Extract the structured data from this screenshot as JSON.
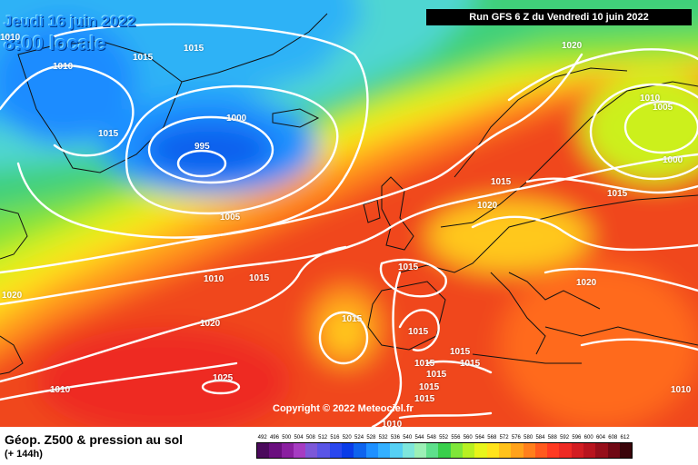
{
  "header": {
    "date": "Jeudi 16 juin 2022",
    "time": "8:00 locale",
    "run": "Run GFS 6 Z du Vendredi 10 juin 2022"
  },
  "footer": {
    "title": "Géop. Z500 & pression au sol",
    "lead": "(+ 144h)",
    "copyright": "Copyright © 2022 Meteociel.fr"
  },
  "isobar_labels": [
    "1010",
    "1015",
    "1010",
    "1015",
    "1000",
    "995",
    "1005",
    "1020",
    "1010",
    "1005",
    "1000",
    "1015",
    "1015",
    "1020",
    "1015",
    "1020",
    "1010",
    "1015",
    "1015",
    "1020",
    "1015",
    "1015",
    "1015",
    "1015",
    "1015",
    "1015",
    "1025",
    "1015",
    "1015",
    "1010",
    "1010",
    "1020",
    "1010"
  ],
  "legend": {
    "ticks": [
      "492",
      "496",
      "500",
      "504",
      "508",
      "512",
      "516",
      "520",
      "524",
      "528",
      "532",
      "536",
      "540",
      "544",
      "548",
      "552",
      "556",
      "560",
      "564",
      "568",
      "572",
      "576",
      "580",
      "584",
      "588",
      "592",
      "596",
      "600",
      "604",
      "608",
      "612"
    ],
    "colors": [
      "#4b0a5c",
      "#6a0f7e",
      "#8a1fa0",
      "#a63cc2",
      "#7d58d8",
      "#5a55e6",
      "#2a47ee",
      "#0a3ce8",
      "#0e64ee",
      "#1e90ff",
      "#34b0ff",
      "#56d0f4",
      "#7ee6dc",
      "#9cf0b6",
      "#5ee08c",
      "#39cf4c",
      "#7fe63a",
      "#b8f022",
      "#e8f51a",
      "#ffe31a",
      "#ffc21a",
      "#ffa21a",
      "#ff7f1c",
      "#ff5a1e",
      "#ff3a22",
      "#ee2a24",
      "#d21d22",
      "#b8141e",
      "#960e1a",
      "#700814",
      "#3a040a"
    ]
  }
}
